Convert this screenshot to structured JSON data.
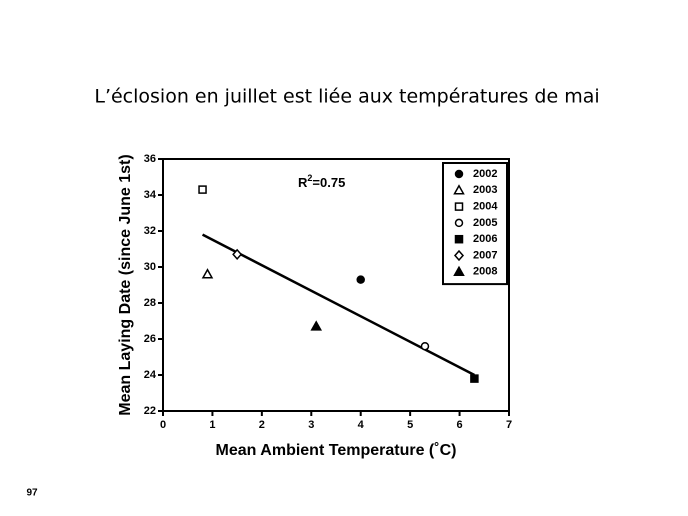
{
  "page_number": "97",
  "chart_data": {
    "type": "scatter",
    "title": "L’éclosion en juillet est liée aux températures de mai",
    "xlabel": "Mean Ambient Temperature (˚C)",
    "ylabel": "Mean Laying Date (since June 1st)",
    "annotation": {
      "base": "R",
      "sup": "2",
      "rest": "=0.75"
    },
    "xlim": [
      0,
      7
    ],
    "xticks": [
      0,
      1,
      2,
      3,
      4,
      5,
      6,
      7
    ],
    "ylim": [
      22,
      36
    ],
    "yticks": [
      22,
      24,
      26,
      28,
      30,
      32,
      34,
      36
    ],
    "legend": "upper right",
    "series": [
      {
        "name": "2002",
        "marker": "circle",
        "filled": true,
        "color": "#000000",
        "x": [
          4.0
        ],
        "values": [
          29.3
        ]
      },
      {
        "name": "2003",
        "marker": "triangle",
        "filled": false,
        "color": "#000000",
        "x": [
          0.9
        ],
        "values": [
          29.6
        ]
      },
      {
        "name": "2004",
        "marker": "square",
        "filled": false,
        "color": "#000000",
        "x": [
          0.8
        ],
        "values": [
          34.3
        ]
      },
      {
        "name": "2005",
        "marker": "circle",
        "filled": false,
        "color": "#000000",
        "x": [
          5.3
        ],
        "values": [
          25.6
        ]
      },
      {
        "name": "2006",
        "marker": "square",
        "filled": true,
        "color": "#000000",
        "x": [
          6.3
        ],
        "values": [
          23.8
        ]
      },
      {
        "name": "2007",
        "marker": "diamond",
        "filled": false,
        "color": "#000000",
        "x": [
          1.5
        ],
        "values": [
          30.7
        ]
      },
      {
        "name": "2008",
        "marker": "triangle",
        "filled": true,
        "color": "#000000",
        "x": [
          3.1
        ],
        "values": [
          26.7
        ]
      }
    ],
    "fit_line": {
      "x": [
        0.8,
        6.3
      ],
      "values": [
        31.8,
        24.0
      ]
    }
  }
}
